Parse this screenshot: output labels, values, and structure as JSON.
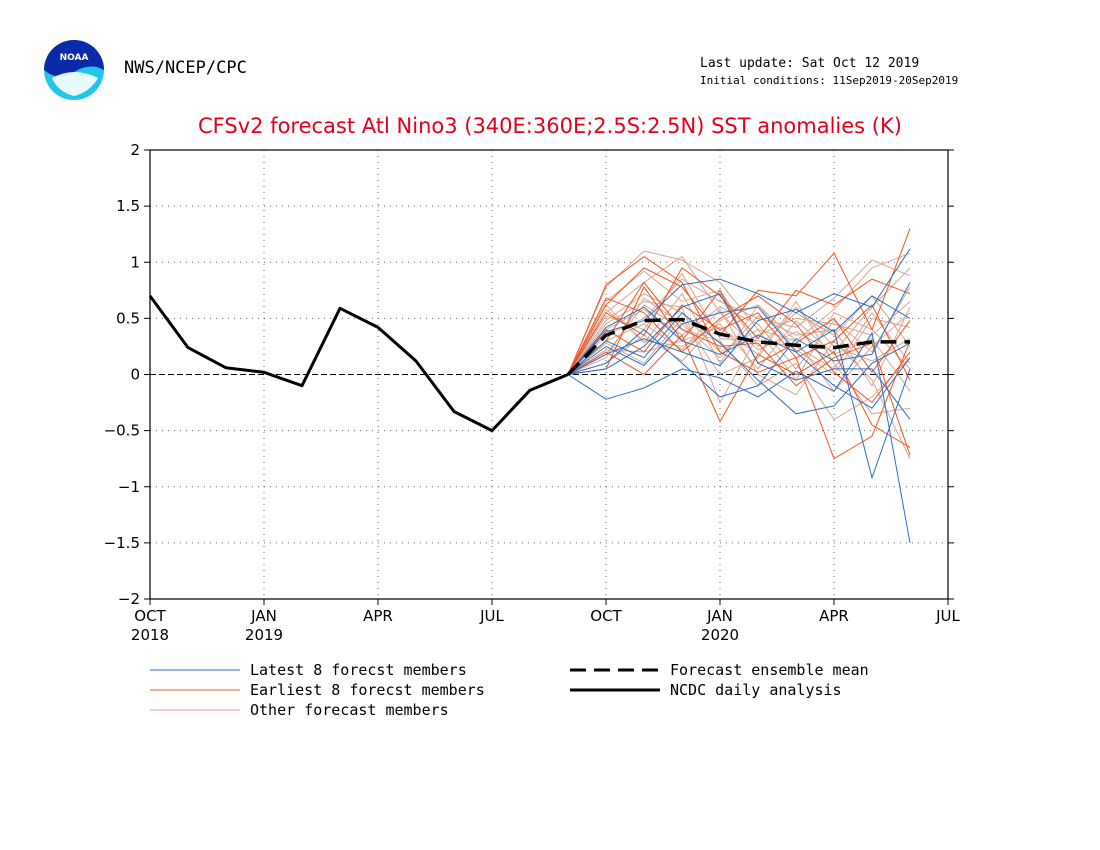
{
  "header": {
    "org": "NWS/NCEP/CPC",
    "last_update": "Last update: Sat Oct 12 2019",
    "initial_conditions": "Initial conditions: 11Sep2019-20Sep2019",
    "logo_text": "NOAA"
  },
  "chart_data": {
    "type": "line",
    "title": "CFSv2 forecast Atl Nino3 (340E:360E;2.5S:2.5N) SST anomalies (K)",
    "ylim": [
      -2,
      2
    ],
    "yticks": [
      2,
      1.5,
      1,
      0.5,
      0,
      -0.5,
      -1,
      -1.5,
      -2
    ],
    "ytick_labels": [
      "2",
      "1.5",
      "1",
      "0.5",
      "0",
      "−0.5",
      "−1",
      "−1.5",
      "−2"
    ],
    "xlim": [
      "2018-10",
      "2020-07"
    ],
    "xticks": [
      {
        "month": "2018-10",
        "label": "OCT",
        "year": "2018"
      },
      {
        "month": "2019-01",
        "label": "JAN",
        "year": "2019"
      },
      {
        "month": "2019-04",
        "label": "APR",
        "year": ""
      },
      {
        "month": "2019-07",
        "label": "JUL",
        "year": ""
      },
      {
        "month": "2019-10",
        "label": "OCT",
        "year": ""
      },
      {
        "month": "2020-01",
        "label": "JAN",
        "year": "2020"
      },
      {
        "month": "2020-04",
        "label": "APR",
        "year": ""
      },
      {
        "month": "2020-07",
        "label": "JUL",
        "year": ""
      }
    ],
    "grid": true,
    "colors": {
      "latest": "#2f6fc0",
      "earliest": "#ee5522",
      "other": "#d8a592",
      "mean": "#000000",
      "analysis": "#000000",
      "title": "#e4001b"
    },
    "analysis": {
      "name": "NCDC daily analysis",
      "x": [
        "2018-10",
        "2018-11",
        "2018-12",
        "2019-01",
        "2019-02",
        "2019-03",
        "2019-04",
        "2019-05",
        "2019-06",
        "2019-07",
        "2019-08",
        "2019-09"
      ],
      "values": [
        0.7,
        0.24,
        0.06,
        0.02,
        -0.1,
        0.59,
        0.42,
        0.12,
        -0.33,
        -0.5,
        -0.14,
        0.0
      ]
    },
    "ensemble_mean": {
      "name": "Forecast ensemble mean",
      "x": [
        "2019-09",
        "2019-10",
        "2019-11",
        "2019-12",
        "2020-01",
        "2020-02",
        "2020-03",
        "2020-04",
        "2020-05",
        "2020-06"
      ],
      "values": [
        0.0,
        0.35,
        0.48,
        0.49,
        0.36,
        0.29,
        0.26,
        0.24,
        0.29,
        0.29
      ]
    },
    "forecast_x": [
      "2019-09",
      "2019-10",
      "2019-11",
      "2019-12",
      "2020-01",
      "2020-02",
      "2020-03",
      "2020-04",
      "2020-05",
      "2020-06"
    ],
    "latest_members": [
      [
        0.0,
        -0.22,
        -0.12,
        0.05,
        -0.03,
        -0.2,
        0.03,
        -0.15,
        0.37,
        -1.5
      ],
      [
        0.0,
        0.38,
        0.48,
        0.8,
        0.85,
        0.72,
        0.55,
        0.72,
        0.6,
        1.12
      ],
      [
        0.0,
        0.18,
        0.32,
        0.2,
        0.08,
        0.48,
        0.58,
        0.38,
        0.7,
        0.5
      ],
      [
        0.0,
        0.05,
        0.25,
        0.6,
        0.72,
        0.1,
        -0.05,
        0.05,
        0.05,
        -0.4
      ],
      [
        0.0,
        0.42,
        0.6,
        0.3,
        0.18,
        0.35,
        0.2,
        -0.1,
        -0.3,
        0.15
      ],
      [
        0.0,
        0.25,
        0.08,
        0.45,
        0.55,
        0.6,
        0.2,
        0.4,
        -0.92,
        0.05
      ],
      [
        0.0,
        0.1,
        0.4,
        0.1,
        -0.2,
        -0.1,
        0.32,
        0.12,
        0.18,
        0.82
      ],
      [
        0.0,
        0.3,
        0.15,
        0.55,
        0.28,
        -0.05,
        -0.35,
        -0.28,
        0.1,
        0.28
      ]
    ],
    "earliest_members": [
      [
        0.0,
        0.8,
        1.05,
        0.82,
        0.2,
        0.02,
        0.15,
        -0.75,
        -0.55,
        0.3
      ],
      [
        0.0,
        0.62,
        0.95,
        0.78,
        0.35,
        0.75,
        0.7,
        1.08,
        0.4,
        1.3
      ],
      [
        0.0,
        0.2,
        0.0,
        0.35,
        -0.42,
        0.18,
        0.0,
        0.2,
        -0.45,
        -0.65
      ],
      [
        0.0,
        0.55,
        0.35,
        0.95,
        0.7,
        0.32,
        0.75,
        0.62,
        0.85,
        0.72
      ],
      [
        0.0,
        0.05,
        0.78,
        0.3,
        0.75,
        0.1,
        0.28,
        0.5,
        0.02,
        0.48
      ],
      [
        0.0,
        0.4,
        0.2,
        0.62,
        0.4,
        0.55,
        0.15,
        0.3,
        0.62,
        -0.05
      ],
      [
        0.0,
        0.3,
        0.82,
        0.4,
        0.25,
        0.28,
        -0.1,
        0.15,
        0.28,
        -0.72
      ],
      [
        0.0,
        0.68,
        0.55,
        0.2,
        0.5,
        0.7,
        0.45,
        0.02,
        -0.25,
        0.2
      ]
    ],
    "other_members": [
      [
        0.0,
        0.78,
        1.1,
        1.02,
        0.82,
        0.4,
        0.3,
        0.58,
        0.95,
        1.08
      ],
      [
        0.0,
        0.55,
        0.82,
        1.05,
        0.55,
        0.22,
        0.38,
        0.2,
        0.6,
        0.95
      ],
      [
        0.0,
        0.45,
        0.65,
        0.6,
        -0.25,
        0.35,
        0.5,
        0.45,
        0.35,
        0.65
      ],
      [
        0.0,
        0.3,
        0.45,
        0.22,
        0.58,
        0.0,
        -0.18,
        0.3,
        -0.05,
        -0.75
      ],
      [
        0.0,
        0.62,
        0.28,
        0.72,
        0.1,
        0.62,
        0.22,
        0.0,
        0.5,
        0.42
      ],
      [
        0.0,
        0.18,
        0.62,
        0.4,
        0.3,
        -0.1,
        0.1,
        -0.4,
        -0.2,
        0.15
      ],
      [
        0.0,
        0.35,
        0.5,
        0.85,
        0.65,
        0.5,
        0.42,
        0.68,
        1.02,
        0.88
      ],
      [
        0.0,
        0.22,
        0.2,
        0.3,
        0.42,
        0.18,
        0.6,
        0.25,
        0.12,
        0.32
      ],
      [
        0.0,
        0.48,
        0.72,
        0.55,
        0.2,
        0.4,
        -0.05,
        0.55,
        0.4,
        0.05
      ],
      [
        0.0,
        0.1,
        0.35,
        0.12,
        0.48,
        0.62,
        0.3,
        -0.15,
        0.25,
        0.55
      ],
      [
        0.0,
        0.65,
        0.92,
        0.65,
        0.75,
        0.25,
        0.55,
        0.35,
        0.7,
        0.25
      ],
      [
        0.0,
        0.28,
        0.1,
        0.5,
        0.0,
        0.15,
        0.65,
        0.1,
        -0.35,
        -0.3
      ],
      [
        0.0,
        0.4,
        0.58,
        0.35,
        0.6,
        0.45,
        0.05,
        0.48,
        0.2,
        0.78
      ],
      [
        0.0,
        0.52,
        0.4,
        0.9,
        0.32,
        0.3,
        0.25,
        0.05,
        0.55,
        0.1
      ],
      [
        0.0,
        0.15,
        0.68,
        0.45,
        0.15,
        0.52,
        0.35,
        0.4,
        -0.1,
        0.6
      ],
      [
        0.0,
        0.58,
        0.3,
        0.25,
        0.45,
        0.05,
        0.48,
        0.18,
        0.32,
        -0.15
      ]
    ],
    "legend": [
      {
        "label": "Latest 8 forecst members",
        "style": "latest"
      },
      {
        "label": "Earliest 8 forecst members",
        "style": "earliest"
      },
      {
        "label": "Other forecast members",
        "style": "other"
      },
      {
        "label": "Forecast ensemble mean",
        "style": "mean"
      },
      {
        "label": "NCDC daily analysis",
        "style": "analysis"
      }
    ]
  }
}
